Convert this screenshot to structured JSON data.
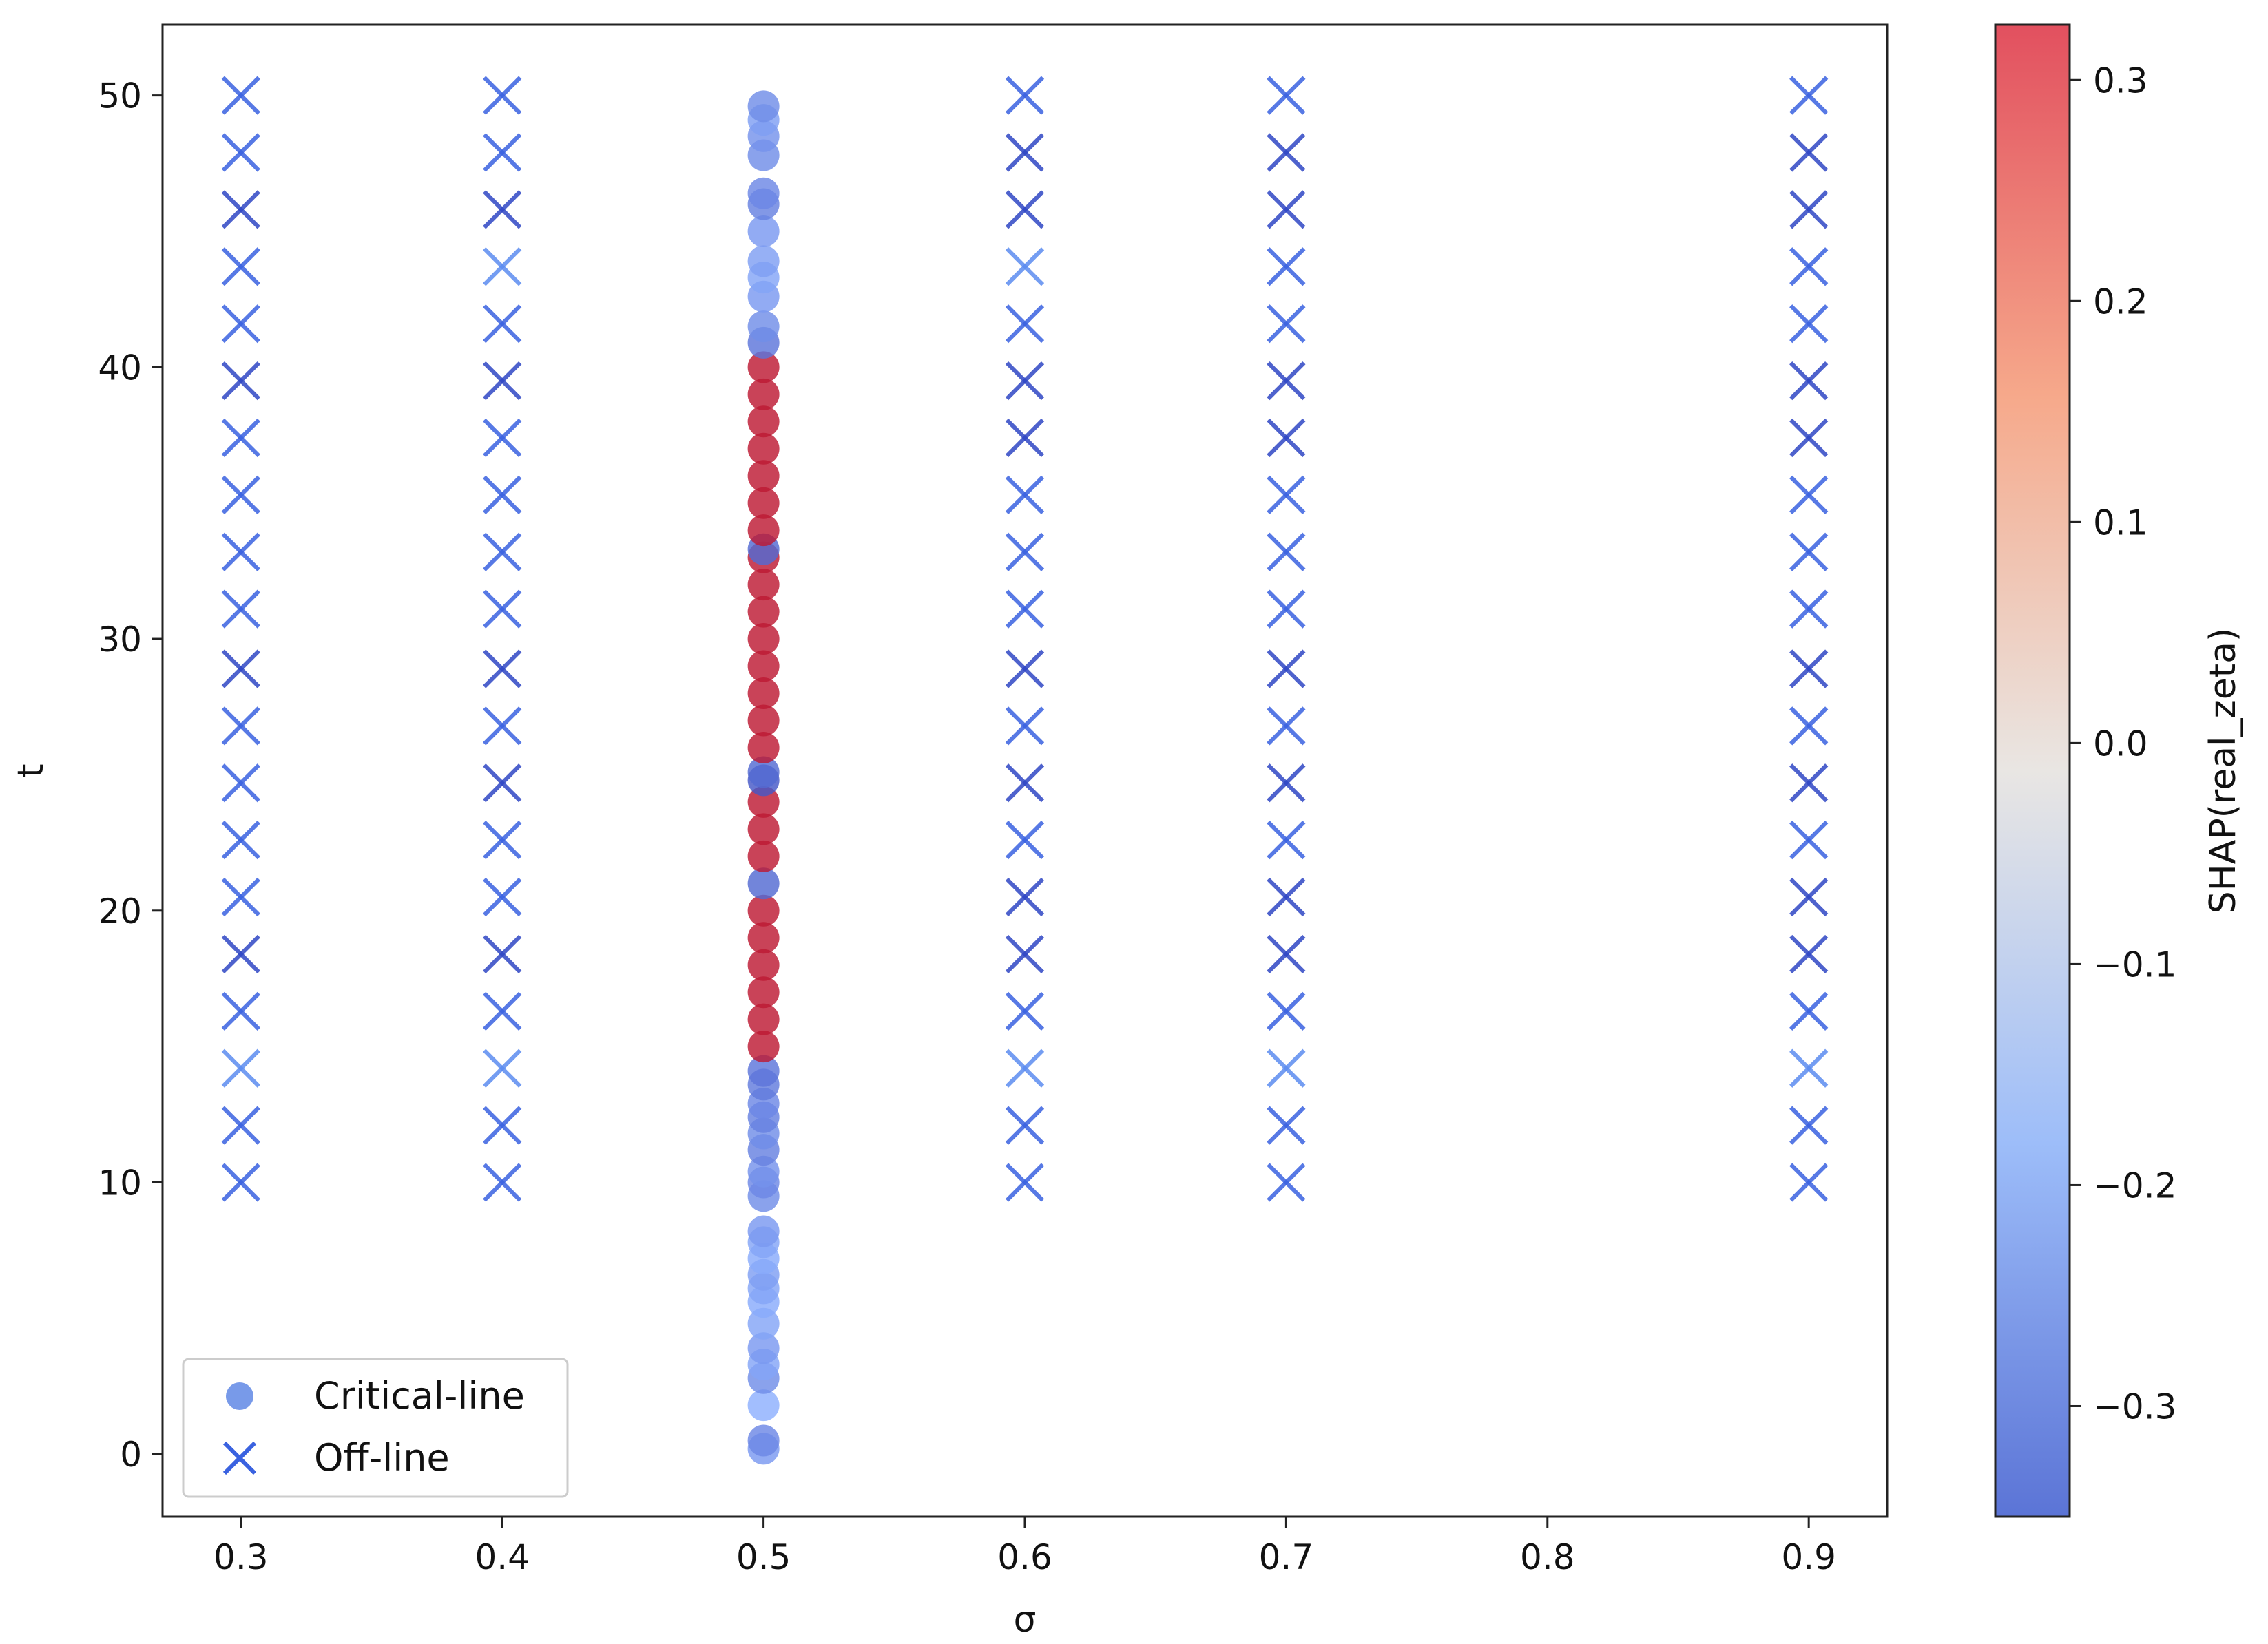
{
  "chart_data": {
    "type": "scatter",
    "xlabel": "σ",
    "ylabel": "t",
    "xlim": [
      0.27,
      0.93
    ],
    "ylim": [
      -2.3,
      52.6
    ],
    "x_ticks": [
      0.3,
      0.4,
      0.5,
      0.6,
      0.7,
      0.8,
      0.9
    ],
    "x_tick_labels": [
      "0.3",
      "0.4",
      "0.5",
      "0.6",
      "0.7",
      "0.8",
      "0.9"
    ],
    "y_ticks": [
      0,
      10,
      20,
      30,
      40,
      50
    ],
    "y_tick_labels": [
      "0",
      "10",
      "20",
      "30",
      "40",
      "50"
    ],
    "grid": false,
    "legend": {
      "position": "lower-left",
      "entries": [
        {
          "label": "Critical-line",
          "marker": "circle"
        },
        {
          "label": "Off-line",
          "marker": "x"
        }
      ]
    },
    "colorbar": {
      "label": "SHAP(real_zeta)",
      "colormap": "coolwarm",
      "range": [
        -0.35,
        0.325
      ],
      "ticks": [
        0.3,
        0.2,
        0.1,
        0.0,
        -0.1,
        -0.2,
        -0.3
      ],
      "tick_labels": [
        "0.3",
        "0.2",
        "0.1",
        "0.0",
        "−0.1",
        "−0.2",
        "−0.3"
      ]
    },
    "colors": {
      "critical_blue": "#3f6fe0",
      "critical_red": "#e03030",
      "offline_dark": "#2f47c4",
      "offline_mid": "#3a62e0",
      "offline_light": "#5c8cf0"
    },
    "series": [
      {
        "name": "Off-line",
        "marker": "x",
        "sigma": [
          0.3,
          0.4,
          0.6,
          0.7,
          0.9
        ],
        "t": [
          10.0,
          12.1,
          14.2,
          16.3,
          18.4,
          20.5,
          22.6,
          24.7,
          26.8,
          28.9,
          31.1,
          33.2,
          35.3,
          37.4,
          39.5,
          41.6,
          43.7,
          45.8,
          47.9,
          50.0
        ],
        "shade": {
          "0.3": [
            1,
            1,
            0,
            1,
            2,
            1,
            1,
            1,
            1,
            2,
            1,
            1,
            1,
            1,
            2,
            1,
            1,
            2,
            1,
            1
          ],
          "0.4": [
            1,
            1,
            0,
            1,
            2,
            1,
            1,
            2,
            1,
            2,
            1,
            1,
            1,
            1,
            2,
            1,
            0,
            2,
            1,
            1
          ],
          "0.6": [
            1,
            1,
            0,
            1,
            2,
            2,
            1,
            2,
            1,
            2,
            1,
            1,
            1,
            2,
            2,
            1,
            0,
            2,
            2,
            1
          ],
          "0.7": [
            1,
            1,
            0,
            1,
            2,
            2,
            1,
            2,
            1,
            2,
            1,
            1,
            1,
            2,
            2,
            1,
            1,
            2,
            2,
            1
          ],
          "0.9": [
            1,
            1,
            0,
            1,
            2,
            2,
            1,
            2,
            1,
            2,
            1,
            1,
            1,
            2,
            2,
            1,
            1,
            2,
            2,
            1
          ]
        }
      },
      {
        "name": "Critical-line",
        "marker": "circle",
        "sigma": 0.5,
        "t": [
          0.2,
          0.5,
          1.8,
          2.8,
          3.3,
          3.9,
          4.8,
          5.6,
          6.1,
          6.6,
          7.2,
          7.8,
          8.2,
          9.5,
          10.0,
          10.4,
          11.2,
          11.8,
          12.4,
          12.9,
          13.6,
          14.1,
          15.0,
          16.0,
          17.0,
          18.0,
          19.0,
          20.0,
          21.0,
          22.0,
          23.0,
          24.0,
          24.8,
          25.1,
          26.0,
          27.0,
          28.0,
          29.0,
          30.0,
          31.0,
          32.0,
          33.0,
          33.3,
          34.0,
          35.0,
          36.0,
          37.0,
          38.0,
          39.0,
          40.0,
          40.9,
          41.5,
          42.6,
          43.3,
          43.9,
          45.0,
          46.0,
          46.4,
          47.8,
          48.5,
          49.1,
          49.6
        ],
        "shap": [
          -0.22,
          -0.25,
          -0.18,
          -0.24,
          -0.2,
          -0.22,
          -0.2,
          -0.19,
          -0.2,
          -0.21,
          -0.19,
          -0.2,
          -0.22,
          -0.24,
          -0.25,
          -0.23,
          -0.26,
          -0.24,
          -0.26,
          -0.25,
          -0.27,
          -0.28,
          0.3,
          0.3,
          0.3,
          0.3,
          0.3,
          0.3,
          -0.3,
          0.3,
          0.3,
          0.3,
          -0.33,
          -0.3,
          0.3,
          0.3,
          0.3,
          0.3,
          0.3,
          0.3,
          0.3,
          0.3,
          -0.3,
          0.3,
          0.3,
          0.3,
          0.3,
          0.3,
          0.3,
          0.3,
          -0.28,
          -0.24,
          -0.22,
          -0.2,
          -0.21,
          -0.22,
          -0.26,
          -0.25,
          -0.24,
          -0.23,
          -0.21,
          -0.24
        ]
      }
    ]
  }
}
